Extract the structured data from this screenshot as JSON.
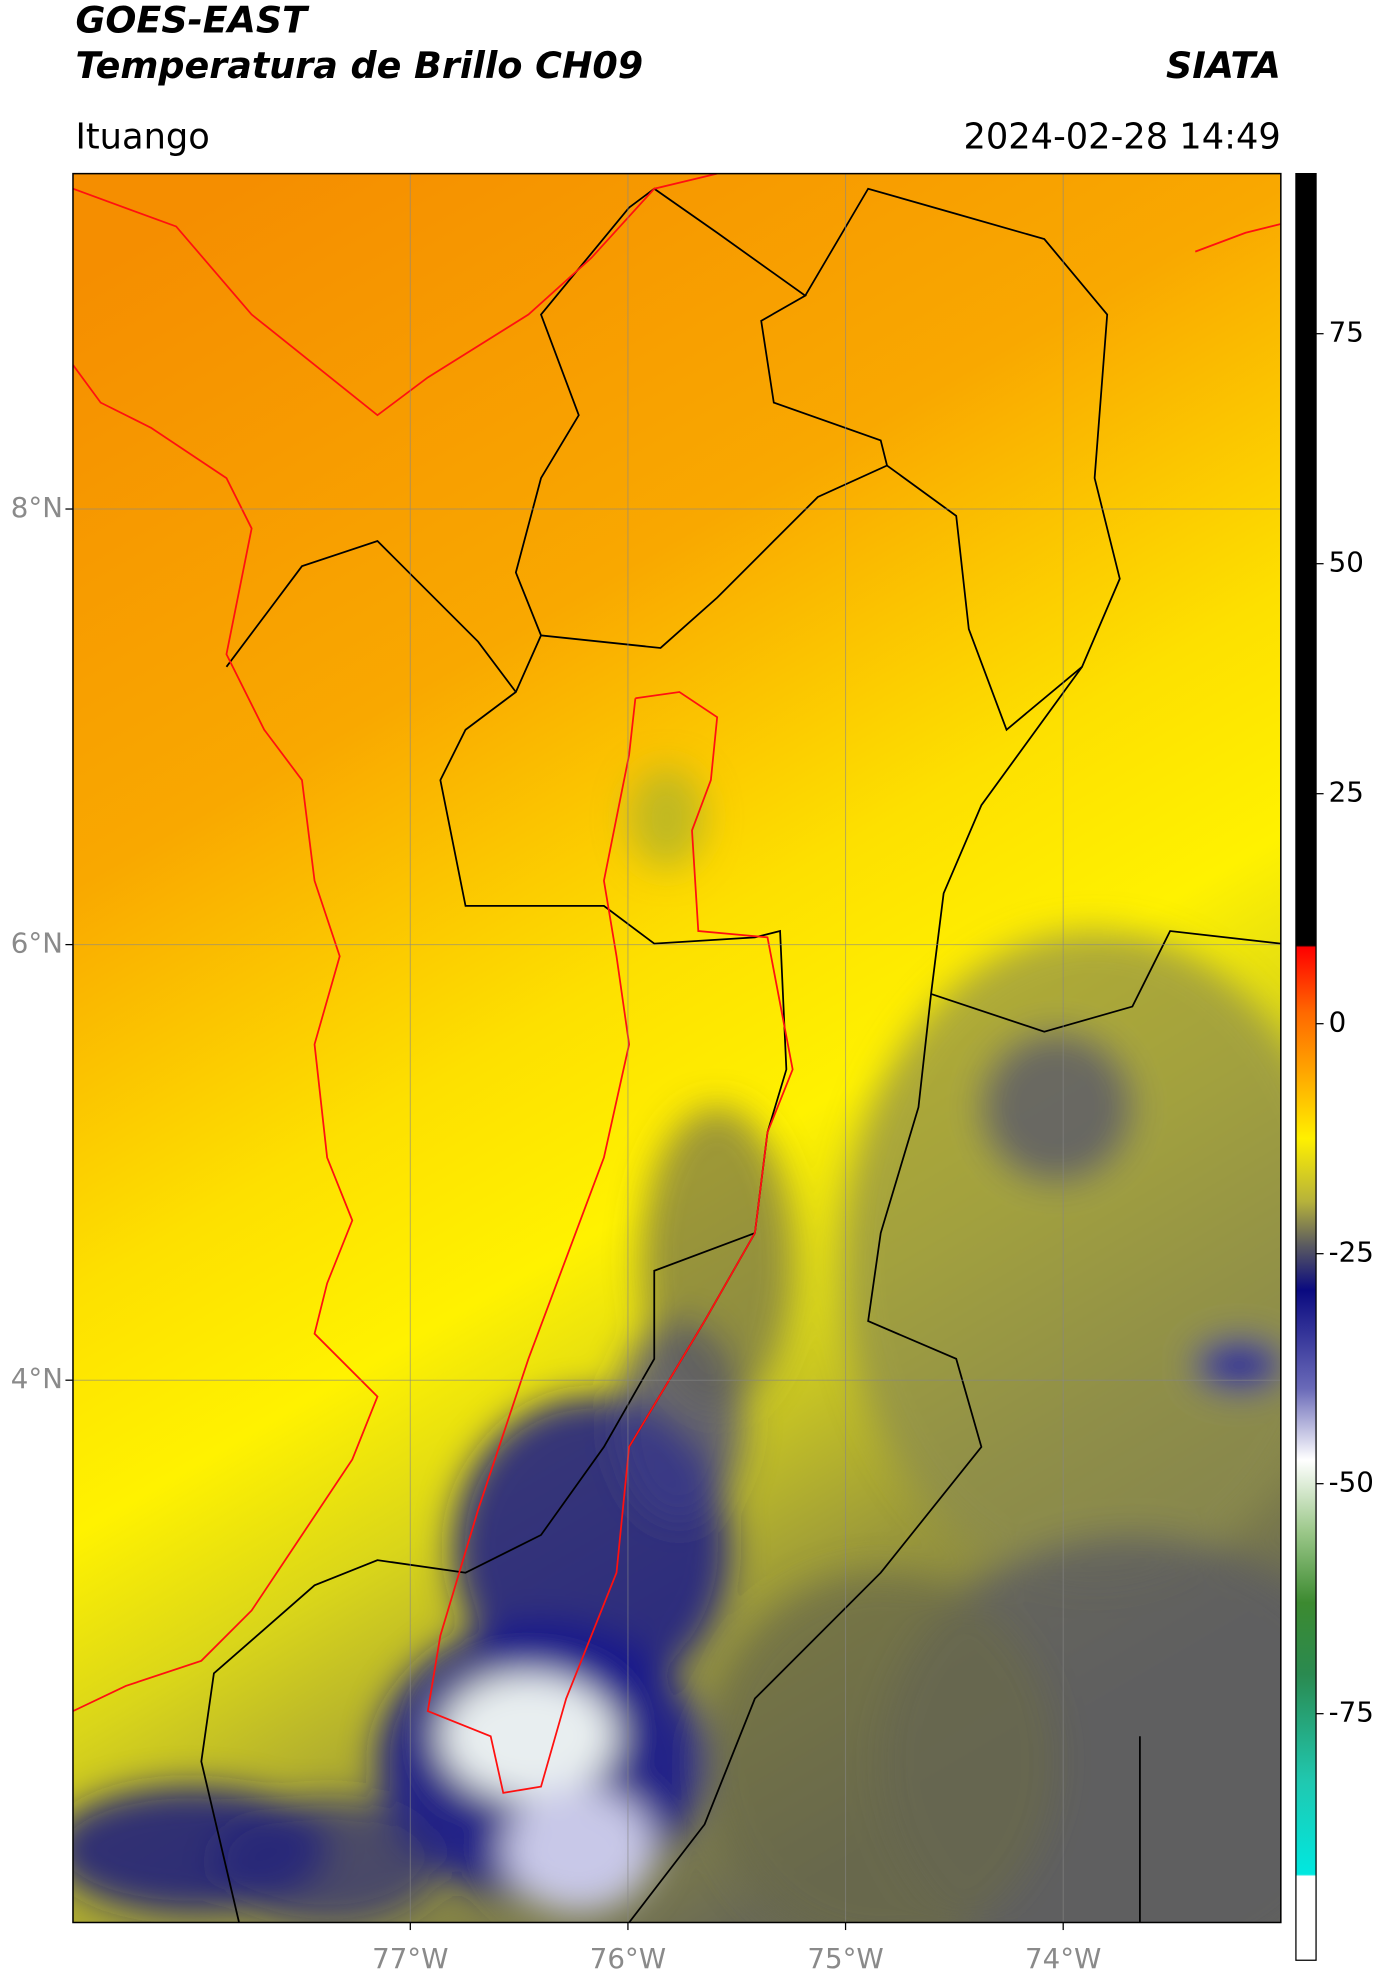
{
  "header": {
    "title": "GOES-EAST",
    "subtitle": "Temperatura de Brillo CH09",
    "source": "SIATA",
    "location": "Ituango",
    "datetime": "2024-02-28 14:49"
  },
  "map": {
    "xlim": [
      -78.55,
      -73.0
    ],
    "ylim": [
      1.51,
      9.54
    ],
    "xticks": [
      {
        "value": -77,
        "label": "77°W"
      },
      {
        "value": -76,
        "label": "76°W"
      },
      {
        "value": -75,
        "label": "75°W"
      },
      {
        "value": -74,
        "label": "74°W"
      }
    ],
    "yticks": [
      {
        "value": 8,
        "label": "8°N"
      },
      {
        "value": 6,
        "label": "6°N"
      },
      {
        "value": 4,
        "label": "4°N"
      }
    ],
    "grid": true
  },
  "colorbar": {
    "clim": [
      -101.8,
      92.4
    ],
    "ticks": [
      75,
      50,
      25,
      0,
      -25,
      -50,
      -75
    ]
  }
}
